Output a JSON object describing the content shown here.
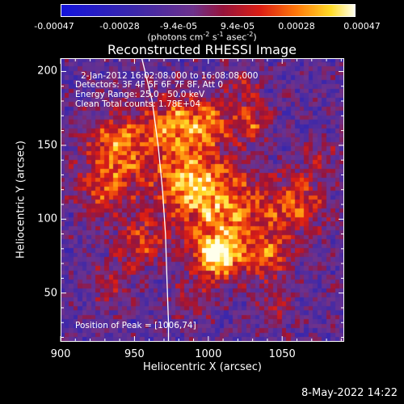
{
  "colorbar": {
    "ticks": [
      "-0.00047",
      "-0.00028",
      "-9.4e-05",
      "9.4e-05",
      "0.00028",
      "0.00047"
    ],
    "units_main": "(photons cm",
    "units_sup1": "-2",
    "units_mid1": " s",
    "units_sup2": "-1",
    "units_mid2": " asec",
    "units_sup3": "-2",
    "units_end": ")"
  },
  "title": "Reconstructed RHESSI Image",
  "info": {
    "time_range": "2-Jan-2012 16:02:08.000 to 16:08:08.000",
    "detectors": "Detectors: 3F 4F 5F 6F 7F 8F, Att 0",
    "energy": "Energy Range: 25.0 - 50.0 keV",
    "clean": "Clean    Total counts: 1.78E+04",
    "peak": "Position of Peak = [1006,74]"
  },
  "timestamp": "8-May-2022 14:22",
  "chart_data": {
    "type": "heatmap",
    "title": "Reconstructed RHESSI Image",
    "xlabel": "Heliocentric X (arcsec)",
    "ylabel": "Heliocentric Y (arcsec)",
    "xlim": [
      900,
      1092
    ],
    "ylim": [
      17,
      209
    ],
    "xticks": [
      900,
      950,
      1000,
      1050
    ],
    "yticks": [
      50,
      100,
      150,
      200
    ],
    "colorbar_range": [
      -0.00047,
      0.00047
    ],
    "colorbar_ticks": [
      -0.00047,
      -0.00028,
      -9.4e-05,
      9.4e-05,
      0.00028,
      0.00047
    ],
    "peak_position": [
      1006,
      74
    ],
    "limb_curve": [
      [
        955,
        209
      ],
      [
        962,
        180
      ],
      [
        966,
        150
      ],
      [
        969,
        120
      ],
      [
        971,
        90
      ],
      [
        972,
        60
      ],
      [
        973,
        30
      ],
      [
        973,
        17
      ]
    ],
    "emission_blobs": [
      {
        "x": 1006,
        "y": 74,
        "amp": 1.0,
        "sigma": 10
      },
      {
        "x": 1010,
        "y": 105,
        "amp": 0.75,
        "sigma": 22
      },
      {
        "x": 985,
        "y": 128,
        "amp": 0.7,
        "sigma": 16
      },
      {
        "x": 940,
        "y": 150,
        "amp": 0.72,
        "sigma": 16
      },
      {
        "x": 930,
        "y": 120,
        "amp": 0.5,
        "sigma": 14
      },
      {
        "x": 975,
        "y": 165,
        "amp": 0.7,
        "sigma": 12
      },
      {
        "x": 1000,
        "y": 165,
        "amp": 0.65,
        "sigma": 12
      },
      {
        "x": 1030,
        "y": 165,
        "amp": 0.55,
        "sigma": 9
      },
      {
        "x": 1025,
        "y": 190,
        "amp": 0.4,
        "sigma": 8
      },
      {
        "x": 1060,
        "y": 110,
        "amp": 0.6,
        "sigma": 14
      },
      {
        "x": 1040,
        "y": 75,
        "amp": 0.55,
        "sigma": 12
      },
      {
        "x": 955,
        "y": 85,
        "amp": 0.5,
        "sigma": 12
      },
      {
        "x": 935,
        "y": 55,
        "amp": 0.35,
        "sigma": 10
      },
      {
        "x": 1075,
        "y": 140,
        "amp": 0.3,
        "sigma": 9
      },
      {
        "x": 1045,
        "y": 40,
        "amp": 0.35,
        "sigma": 10
      },
      {
        "x": 990,
        "y": 45,
        "amp": 0.35,
        "sigma": 9
      }
    ]
  }
}
